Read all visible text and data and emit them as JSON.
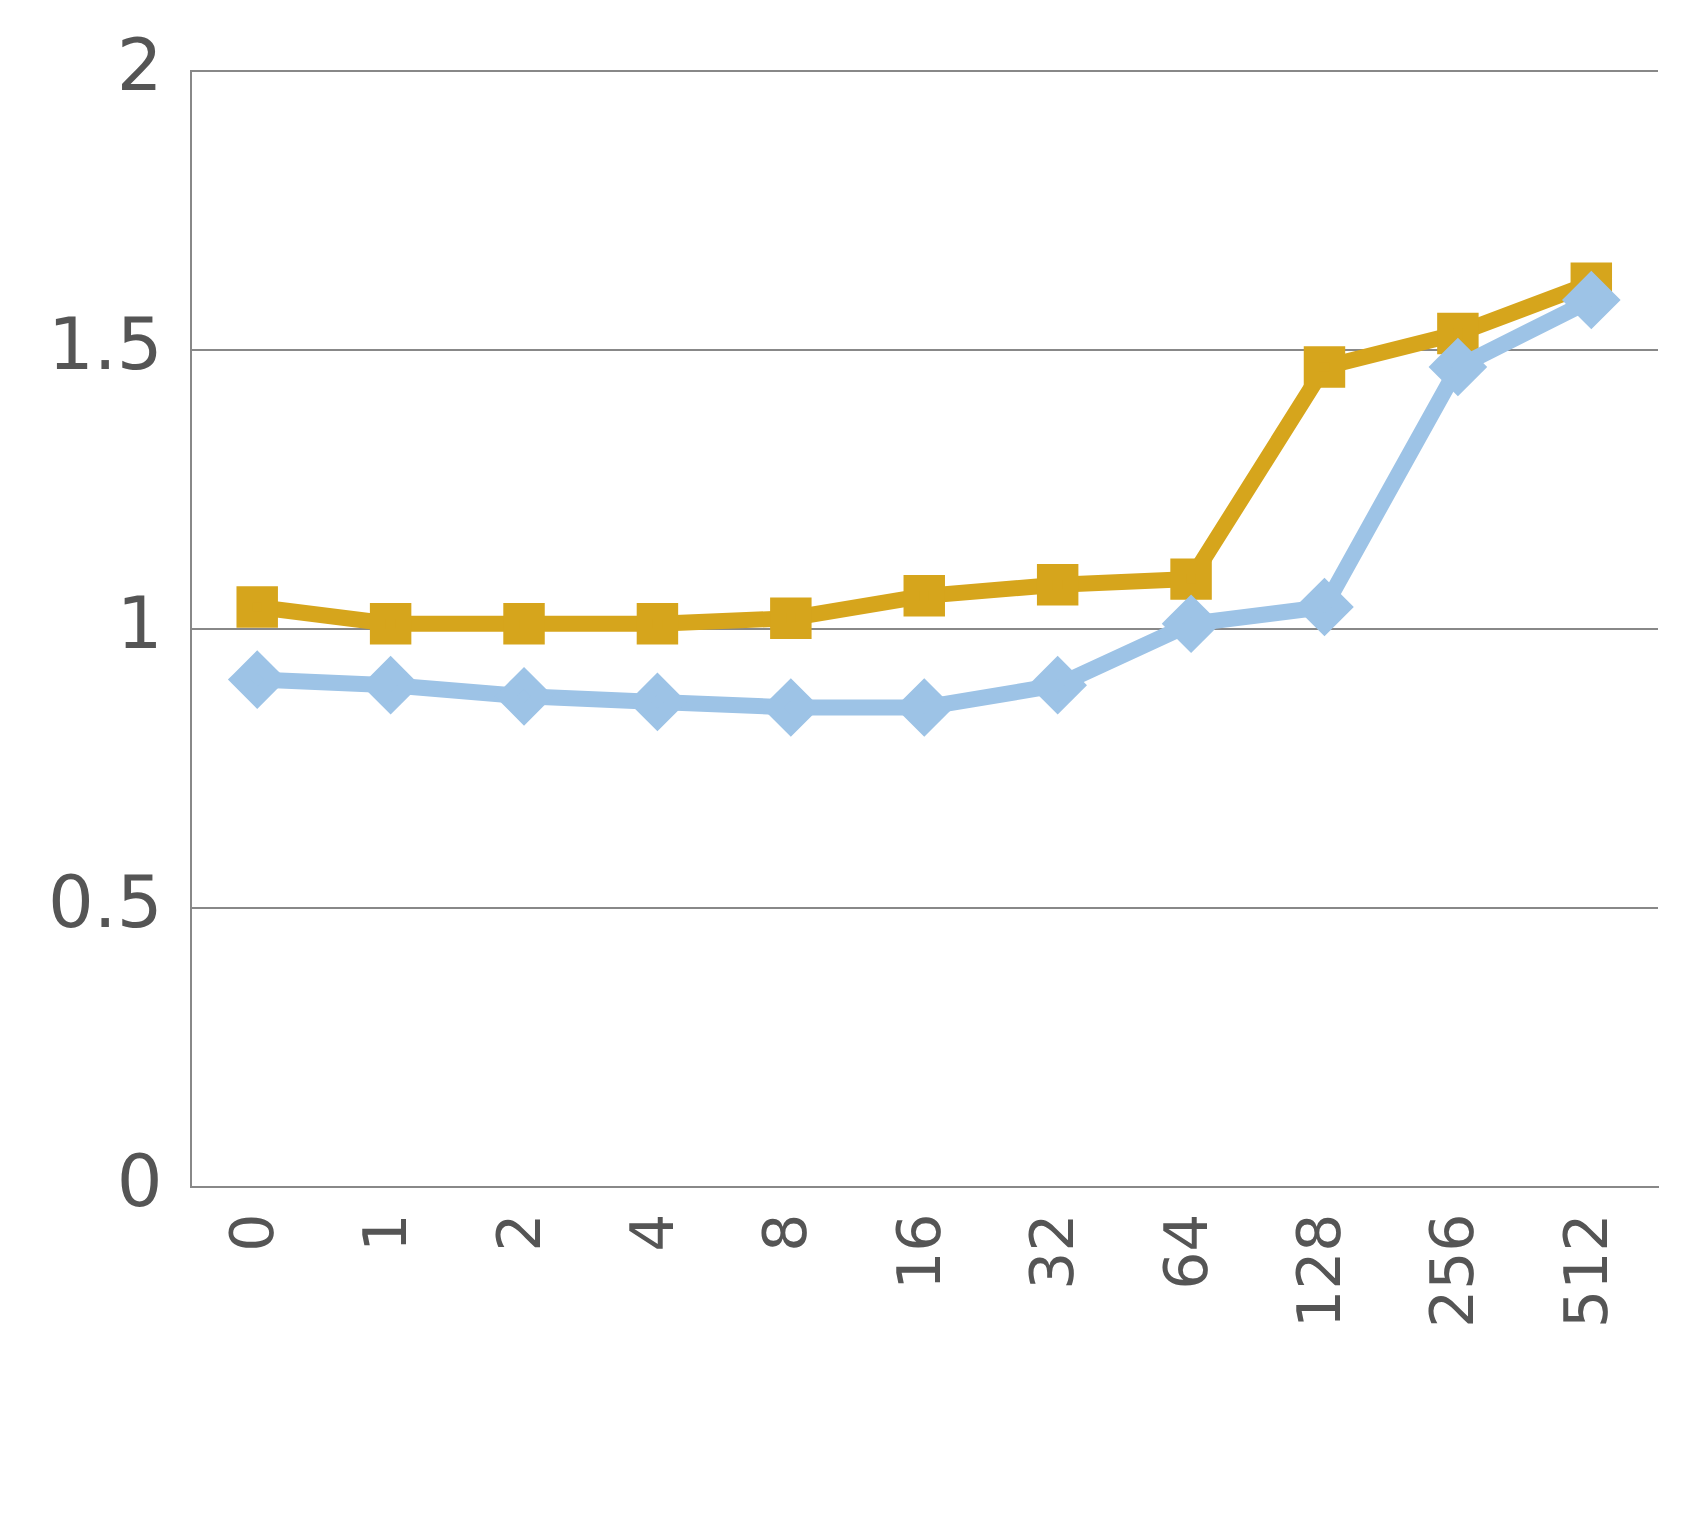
{
  "chart_data": {
    "type": "line",
    "categories": [
      "0",
      "1",
      "2",
      "4",
      "8",
      "16",
      "32",
      "64",
      "128",
      "256",
      "512"
    ],
    "series": [
      {
        "color": "#9dc3e6",
        "marker": "diamond",
        "values": [
          0.91,
          0.9,
          0.88,
          0.87,
          0.86,
          0.86,
          0.9,
          1.01,
          1.04,
          1.47,
          1.59
        ]
      },
      {
        "color": "#d6a51c",
        "marker": "square",
        "values": [
          1.04,
          1.01,
          1.01,
          1.01,
          1.02,
          1.06,
          1.08,
          1.09,
          1.47,
          1.53,
          1.62
        ]
      }
    ],
    "ylim": [
      0,
      2
    ],
    "yticks": [
      0,
      0.5,
      1,
      1.5,
      2
    ],
    "grid": "y",
    "legend": false
  }
}
